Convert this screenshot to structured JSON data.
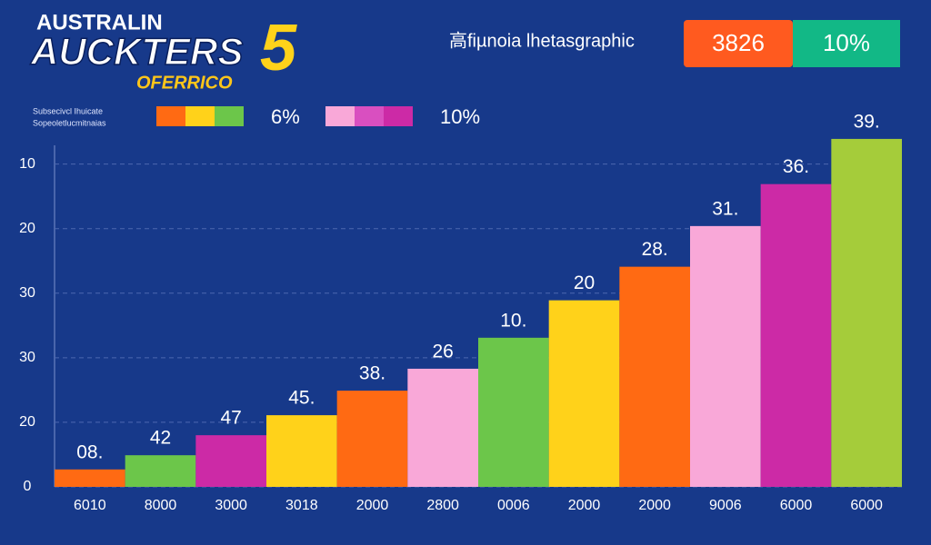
{
  "chart_data": {
    "type": "bar",
    "title": "AUCKTERS",
    "title_top": "AUSTRALIN",
    "title_number": "5",
    "subtitle": "OFERRICO",
    "header_text": "高fiµnoia lhetasgraphic",
    "badges": [
      {
        "label": "3826",
        "color": "#ff5a1f"
      },
      {
        "label": "10%",
        "color": "#12b886"
      }
    ],
    "legend_note": [
      "Subsecivcl Ihuicate",
      "Sopeoletlucmitnaias"
    ],
    "legend": [
      {
        "label": "6%",
        "colors": [
          "#ff6a13",
          "#ffd21a",
          "#6cc64a"
        ]
      },
      {
        "label": "10%",
        "colors": [
          "#f9a8d8",
          "#d94fc0",
          "#cc2aa6"
        ]
      }
    ],
    "categories": [
      "6010",
      "8000",
      "3000",
      "3018",
      "2000",
      "2800",
      "0006",
      "2000",
      "2000",
      "9006",
      "6000",
      "6000"
    ],
    "values": [
      0.27,
      0.49,
      0.8,
      1.11,
      1.49,
      1.83,
      2.31,
      2.89,
      3.41,
      4.04,
      4.69,
      5.39
    ],
    "bar_labels": [
      "08.",
      "42",
      "47",
      "45.",
      "38.",
      "26",
      "10.",
      "20",
      "28.",
      "31.",
      "36.",
      "39."
    ],
    "colors": [
      "#ff6a13",
      "#6cc64a",
      "#cc2aa6",
      "#ffd21a",
      "#ff6a13",
      "#f9a8d8",
      "#6cc64a",
      "#ffd21a",
      "#ff6a13",
      "#f9a8d8",
      "#cc2aa6",
      "#a5cc3a"
    ],
    "ylim": [
      0,
      5.6
    ],
    "yticks": [
      0,
      {
        "value": 1,
        "label": "20"
      },
      {
        "value": 2,
        "label": "30"
      },
      {
        "value": 3,
        "label": "30"
      },
      {
        "value": 4,
        "label": "20"
      },
      {
        "value": 5,
        "label": "10"
      }
    ],
    "grid": true
  }
}
